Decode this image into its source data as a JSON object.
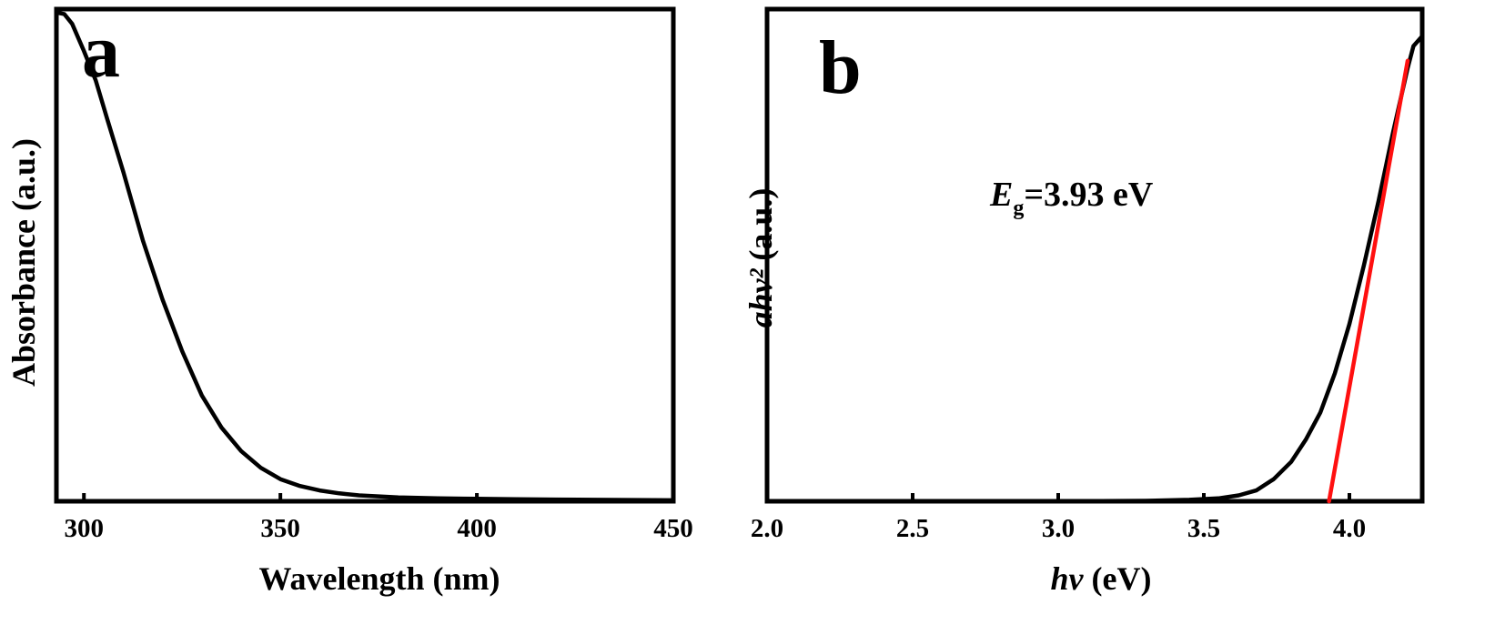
{
  "chart_data": [
    {
      "type": "line",
      "panel_label": "a",
      "xlabel": "Wavelength (nm)",
      "ylabel": "Absorbance (a.u.)",
      "xlim": [
        293,
        450
      ],
      "ylim": [
        0,
        1
      ],
      "xticks": [
        300,
        350,
        400,
        450
      ],
      "grid": false,
      "series": [
        {
          "color": "#000000",
          "x": [
            293,
            295,
            297,
            300,
            303,
            306,
            310,
            315,
            320,
            325,
            330,
            335,
            340,
            345,
            350,
            355,
            360,
            365,
            370,
            375,
            380,
            390,
            400,
            410,
            420,
            430,
            440,
            450
          ],
          "y": [
            0.993,
            0.99,
            0.97,
            0.915,
            0.855,
            0.775,
            0.67,
            0.53,
            0.41,
            0.305,
            0.215,
            0.15,
            0.102,
            0.068,
            0.045,
            0.031,
            0.022,
            0.016,
            0.012,
            0.01,
            0.008,
            0.006,
            0.005,
            0.004,
            0.0035,
            0.003,
            0.0025,
            0.002
          ]
        }
      ]
    },
    {
      "type": "line",
      "panel_label": "b",
      "xlabel": "hv (eV)",
      "ylabel": "ahv² (a.u.)",
      "xlim": [
        2.0,
        4.25
      ],
      "ylim": [
        0,
        1
      ],
      "xticks": [
        "2.0",
        "2.5",
        "3.0",
        "3.5",
        "4.0"
      ],
      "grid": false,
      "annotation": {
        "symbol": "E",
        "subscript": "g",
        "text": "=3.93 eV"
      },
      "series": [
        {
          "color": "#000000",
          "x": [
            2.0,
            2.5,
            3.0,
            3.3,
            3.45,
            3.55,
            3.62,
            3.68,
            3.74,
            3.8,
            3.85,
            3.9,
            3.95,
            4.0,
            4.05,
            4.1,
            4.15,
            4.2,
            4.22,
            4.25
          ],
          "y": [
            0.0,
            0.0,
            0.0,
            0.001,
            0.003,
            0.006,
            0.012,
            0.022,
            0.045,
            0.08,
            0.125,
            0.18,
            0.26,
            0.36,
            0.48,
            0.61,
            0.75,
            0.88,
            0.925,
            0.945
          ]
        },
        {
          "color": "#ff1010",
          "x": [
            3.93,
            4.2
          ],
          "y": [
            0.0,
            0.895
          ]
        }
      ]
    }
  ]
}
